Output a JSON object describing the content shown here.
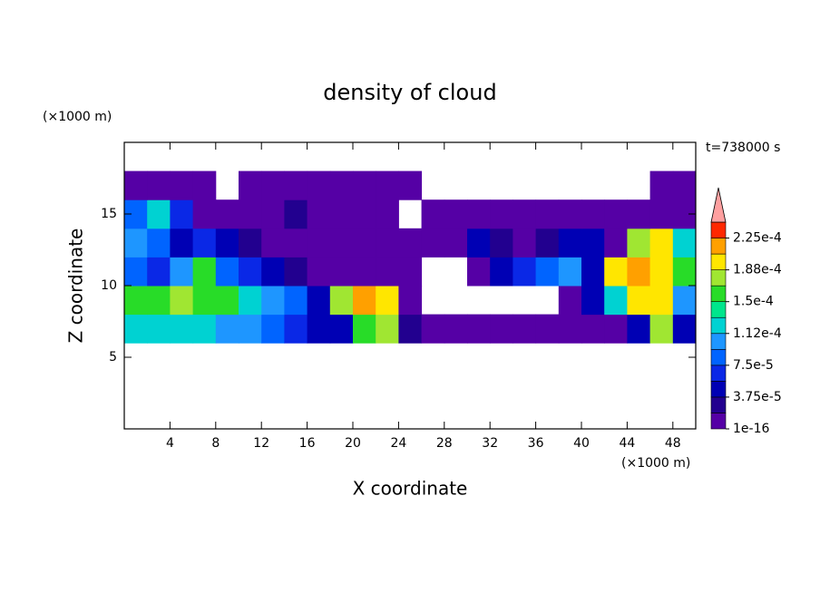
{
  "chart_data": {
    "type": "contour",
    "title": "density of cloud",
    "xlabel": "X coordinate",
    "ylabel": "Z coordinate",
    "xunit": "(×1000 m)",
    "yunit": "(×1000 m)",
    "time_label": "t=738000 s",
    "xlim": [
      0,
      50
    ],
    "ylim": [
      0,
      20
    ],
    "xticks": [
      4,
      8,
      12,
      16,
      20,
      24,
      28,
      32,
      36,
      40,
      44,
      48
    ],
    "yticks": [
      5,
      10,
      15
    ],
    "x": [
      1,
      3,
      5,
      7,
      9,
      11,
      13,
      15,
      17,
      19,
      21,
      23,
      25,
      27,
      29,
      31,
      33,
      35,
      37,
      39,
      41,
      43,
      45,
      47,
      49
    ],
    "y": [
      1,
      3,
      5,
      7,
      9,
      11,
      13,
      15,
      17,
      19
    ],
    "z": [
      [
        null,
        null,
        null,
        null,
        null,
        null,
        null,
        null,
        null,
        null,
        null,
        null,
        null,
        null,
        null,
        null,
        null,
        null,
        null,
        null,
        null,
        null,
        null,
        null,
        null
      ],
      [
        null,
        null,
        null,
        null,
        null,
        null,
        null,
        null,
        null,
        null,
        null,
        null,
        null,
        null,
        null,
        null,
        null,
        null,
        null,
        null,
        null,
        null,
        null,
        null,
        null
      ],
      [
        null,
        null,
        null,
        null,
        null,
        null,
        null,
        null,
        null,
        null,
        null,
        null,
        null,
        null,
        null,
        null,
        null,
        null,
        null,
        null,
        null,
        null,
        null,
        null,
        null
      ],
      [
        0.00013,
        0.00013,
        0.00012,
        0.00012,
        0.00011,
        0.0001,
        9e-05,
        7e-05,
        5e-05,
        4e-05,
        0.00015,
        0.00017,
        2e-05,
        1e-16,
        1e-16,
        1e-16,
        1e-16,
        1e-16,
        1e-16,
        1e-16,
        1e-16,
        1e-16,
        5e-05,
        0.00018,
        5e-05
      ],
      [
        0.00015,
        0.00016,
        0.00017,
        0.00016,
        0.00015,
        0.00013,
        0.00011,
        8e-05,
        4e-05,
        0.00018,
        0.00021,
        0.00019,
        1e-16,
        null,
        null,
        null,
        null,
        null,
        null,
        1e-16,
        4e-05,
        0.00012,
        0.0002,
        0.00019,
        0.0001
      ],
      [
        8e-05,
        6e-05,
        0.0001,
        0.00016,
        9e-05,
        6e-05,
        4e-05,
        2e-05,
        1e-16,
        1e-16,
        1e-16,
        1e-16,
        1e-16,
        null,
        null,
        1e-16,
        4e-05,
        6e-05,
        8e-05,
        0.0001,
        5e-05,
        0.00019,
        0.00021,
        0.0002,
        0.00016
      ],
      [
        0.00011,
        9e-05,
        5e-05,
        6e-05,
        4e-05,
        2e-05,
        1e-16,
        1e-16,
        1e-16,
        1e-16,
        1e-16,
        1e-16,
        1e-16,
        1e-16,
        1e-16,
        5e-05,
        3e-05,
        1e-16,
        3e-05,
        5e-05,
        4e-05,
        1e-16,
        0.00018,
        0.00019,
        0.00013
      ],
      [
        9e-05,
        0.00012,
        7e-05,
        1e-16,
        1e-16,
        1e-16,
        1e-16,
        2e-05,
        1e-16,
        1e-16,
        1e-16,
        1e-16,
        null,
        1e-16,
        1e-16,
        1e-16,
        1e-16,
        1e-16,
        1e-16,
        1e-16,
        1e-16,
        1e-16,
        1e-16,
        1e-16,
        1e-16
      ],
      [
        1e-16,
        1e-16,
        1e-16,
        1e-16,
        null,
        1e-16,
        1e-16,
        1e-16,
        1e-16,
        1e-16,
        1e-16,
        1e-16,
        1e-16,
        null,
        null,
        null,
        null,
        null,
        null,
        null,
        null,
        null,
        null,
        1e-16,
        1e-16
      ],
      [
        null,
        null,
        null,
        null,
        null,
        null,
        null,
        null,
        null,
        null,
        null,
        null,
        null,
        null,
        null,
        null,
        null,
        null,
        null,
        null,
        null,
        null,
        null,
        null,
        null
      ]
    ],
    "levels": [
      1e-16,
      1.875e-05,
      3.75e-05,
      5.625e-05,
      7.5e-05,
      9.375e-05,
      0.0001125,
      0.00013125,
      0.00015,
      0.00016875,
      0.0001875,
      0.00020625,
      0.000225
    ],
    "colors": [
      "#5500a5",
      "#22008f",
      "#0000b4",
      "#0a28e6",
      "#0064ff",
      "#1e96ff",
      "#00d2d2",
      "#00e68c",
      "#28dc28",
      "#a0e632",
      "#ffe600",
      "#ffa000",
      "#ff2800"
    ],
    "overflow_color": "#ffa0a0",
    "colorbar_ticks": [
      {
        "value": 1e-16,
        "label": "1e-16"
      },
      {
        "value": 3.75e-05,
        "label": "3.75e-5"
      },
      {
        "value": 7.5e-05,
        "label": "7.5e-5"
      },
      {
        "value": 0.0001125,
        "label": "1.12e-4"
      },
      {
        "value": 0.00015,
        "label": "1.5e-4"
      },
      {
        "value": 0.0001875,
        "label": "1.88e-4"
      },
      {
        "value": 0.000225,
        "label": "2.25e-4"
      }
    ]
  }
}
